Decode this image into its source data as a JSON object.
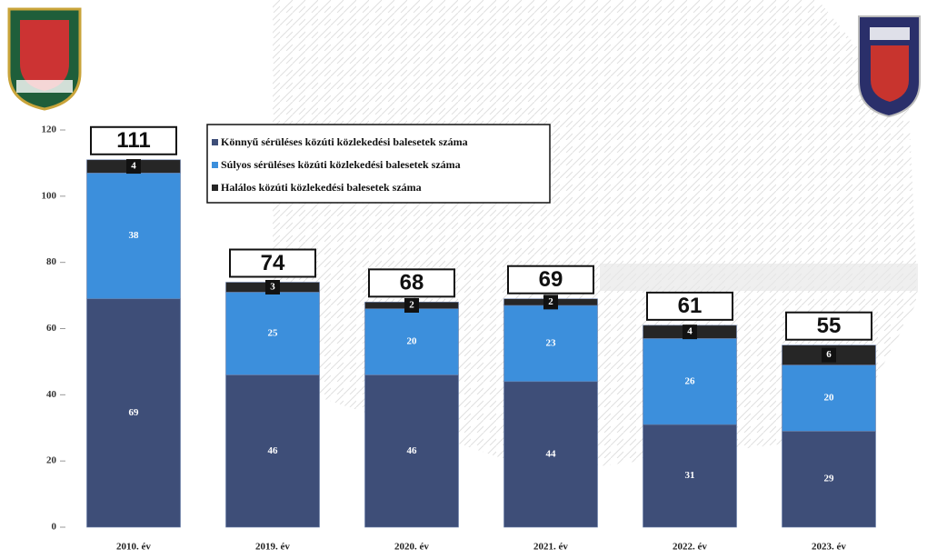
{
  "chart_data": {
    "type": "stacked_bar",
    "categories": [
      "2010. év",
      "2019. év",
      "2020. év",
      "2021. év",
      "2022. év",
      "2023. év"
    ],
    "series": [
      {
        "name": "Könnyű sérüléses közúti közlekedési balesetek száma",
        "color": "#3e4e78",
        "values": [
          69,
          46,
          46,
          44,
          31,
          29
        ]
      },
      {
        "name": "Súlyos sérüléses közúti közlekedési balesetek száma",
        "color": "#3c8fdc",
        "values": [
          38,
          25,
          20,
          23,
          26,
          20
        ]
      },
      {
        "name": "Halálos közúti közlekedési balesetek száma",
        "color": "#262626",
        "values": [
          4,
          3,
          2,
          2,
          4,
          6
        ]
      }
    ],
    "totals": [
      111,
      74,
      68,
      69,
      61,
      55
    ],
    "ylim": [
      0,
      120
    ],
    "yticks": [
      0,
      20,
      40,
      60,
      80,
      100,
      120
    ],
    "grid": false
  }
}
